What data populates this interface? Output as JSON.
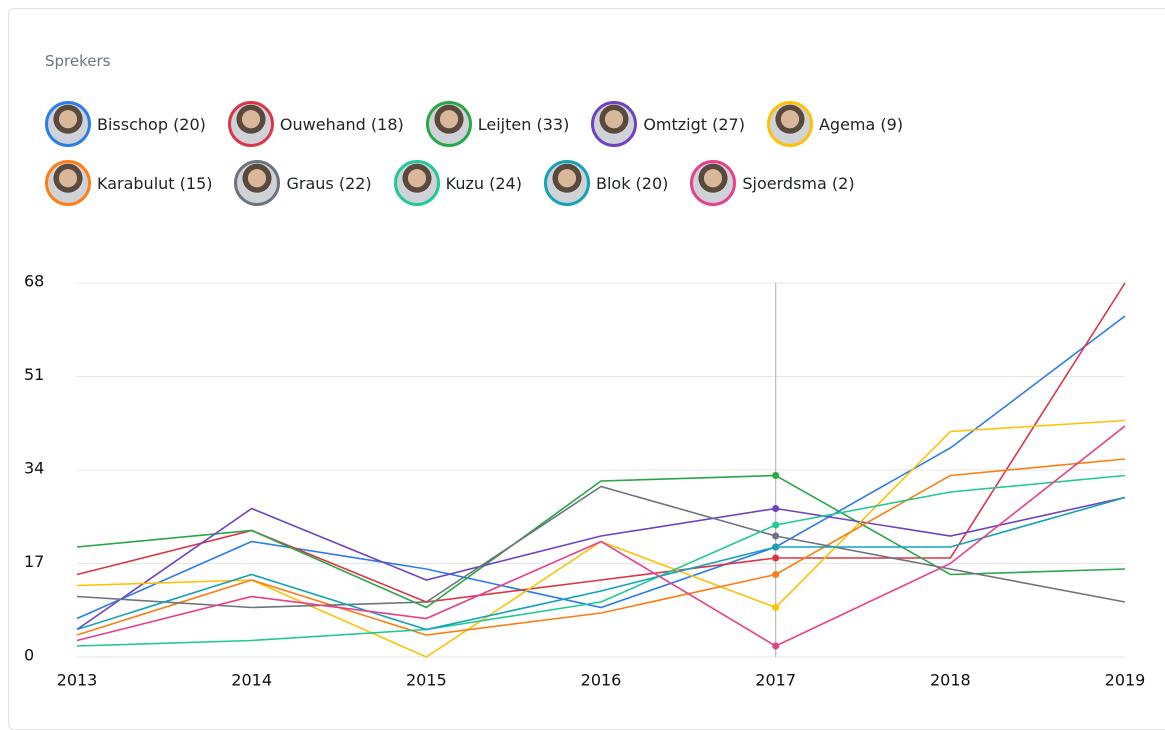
{
  "chart_data": {
    "type": "line",
    "title": "Sprekers",
    "categories": [
      "2013",
      "2014",
      "2015",
      "2016",
      "2017",
      "2018",
      "2019"
    ],
    "ylim": [
      0,
      68
    ],
    "yticks": [
      0,
      17,
      34,
      51,
      68
    ],
    "grid": true,
    "series": [
      {
        "name": "Bisschop (20)",
        "color": "#2b7de9",
        "values": [
          7,
          21,
          16,
          9,
          20,
          38,
          62
        ]
      },
      {
        "name": "Ouwehand (18)",
        "color": "#dc3545",
        "values": [
          15,
          23,
          10,
          14,
          18,
          18,
          68
        ]
      },
      {
        "name": "Leijten (33)",
        "color": "#28a745",
        "values": [
          20,
          23,
          9,
          32,
          33,
          15,
          16
        ]
      },
      {
        "name": "Omtzigt (27)",
        "color": "#6f42c1",
        "values": [
          5,
          27,
          14,
          22,
          27,
          22,
          29
        ]
      },
      {
        "name": "Agema (9)",
        "color": "#ffc107",
        "values": [
          13,
          14,
          0,
          21,
          9,
          41,
          43
        ]
      },
      {
        "name": "Karabulut (15)",
        "color": "#fd7e14",
        "values": [
          4,
          14,
          4,
          8,
          15,
          33,
          36
        ]
      },
      {
        "name": "Graus (22)",
        "color": "#6c757d",
        "values": [
          11,
          9,
          10,
          31,
          22,
          16,
          10
        ]
      },
      {
        "name": "Kuzu (24)",
        "color": "#20c997",
        "values": [
          2,
          3,
          5,
          10,
          24,
          30,
          33
        ]
      },
      {
        "name": "Blok (20)",
        "color": "#17a2b8",
        "values": [
          5,
          15,
          5,
          12,
          20,
          20,
          29
        ]
      },
      {
        "name": "Sjoerdsma (2)",
        "color": "#e83e8c",
        "values": [
          3,
          11,
          7,
          21,
          2,
          17,
          42
        ]
      }
    ]
  }
}
